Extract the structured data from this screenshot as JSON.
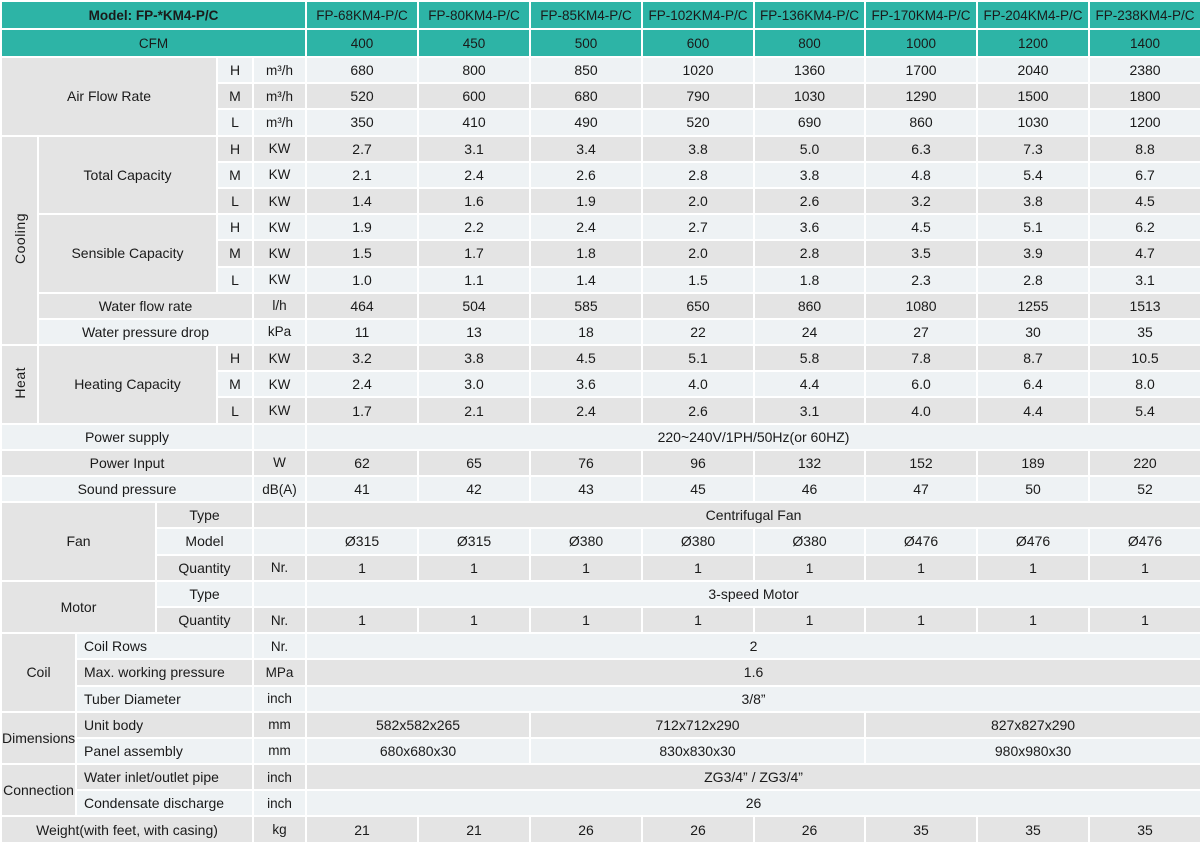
{
  "colors": {
    "header_teal": "#2db4a6",
    "row_gray": "#e4e4e4",
    "row_light": "#eef2f4",
    "grid_white": "#ffffff",
    "text": "#1a1a1a"
  },
  "table": {
    "header": [
      {
        "cells": [
          {
            "t": "Model: FP-*KM4-P/C",
            "cs": 6,
            "k": "hm"
          },
          {
            "t": "FP-68KM4-P/C",
            "k": "hc"
          },
          {
            "t": "FP-80KM4-P/C",
            "k": "hc"
          },
          {
            "t": "FP-85KM4-P/C",
            "k": "hc"
          },
          {
            "t": "FP-102KM4-P/C",
            "k": "hc"
          },
          {
            "t": "FP-136KM4-P/C",
            "k": "hc"
          },
          {
            "t": "FP-170KM4-P/C",
            "k": "hc"
          },
          {
            "t": "FP-204KM4-P/C",
            "k": "hc"
          },
          {
            "t": "FP-238KM4-P/C",
            "k": "hc"
          }
        ]
      },
      {
        "cells": [
          {
            "t": "CFM",
            "cs": 6,
            "k": "hc"
          },
          {
            "t": "400",
            "k": "hc"
          },
          {
            "t": "450",
            "k": "hc"
          },
          {
            "t": "500",
            "k": "hc"
          },
          {
            "t": "600",
            "k": "hc"
          },
          {
            "t": "800",
            "k": "hc"
          },
          {
            "t": "1000",
            "k": "hc"
          },
          {
            "t": "1200",
            "k": "hc"
          },
          {
            "t": "1400",
            "k": "hc"
          }
        ]
      }
    ],
    "body": [
      {
        "cells": [
          {
            "t": "Air Flow Rate",
            "cs": 4,
            "rs": 3,
            "k": "g"
          },
          {
            "t": "H",
            "k": "h"
          },
          {
            "t": "m³/h",
            "k": "u"
          },
          {
            "t": "680"
          },
          {
            "t": "800"
          },
          {
            "t": "850"
          },
          {
            "t": "1020"
          },
          {
            "t": "1360"
          },
          {
            "t": "1700"
          },
          {
            "t": "2040"
          },
          {
            "t": "2380"
          }
        ]
      },
      {
        "cells": [
          {
            "t": "M",
            "k": "h"
          },
          {
            "t": "m³/h",
            "k": "u"
          },
          {
            "t": "520"
          },
          {
            "t": "600"
          },
          {
            "t": "680"
          },
          {
            "t": "790"
          },
          {
            "t": "1030"
          },
          {
            "t": "1290"
          },
          {
            "t": "1500"
          },
          {
            "t": "1800"
          }
        ]
      },
      {
        "cells": [
          {
            "t": "L",
            "k": "h"
          },
          {
            "t": "m³/h",
            "k": "u"
          },
          {
            "t": "350"
          },
          {
            "t": "410"
          },
          {
            "t": "490"
          },
          {
            "t": "520"
          },
          {
            "t": "690"
          },
          {
            "t": "860"
          },
          {
            "t": "1030"
          },
          {
            "t": "1200"
          }
        ]
      },
      {
        "cells": [
          {
            "t": "Cooling",
            "rs": 8,
            "k": "v"
          },
          {
            "t": "Total Capacity",
            "cs": 3,
            "rs": 3,
            "k": "g"
          },
          {
            "t": "H",
            "k": "h"
          },
          {
            "t": "KW",
            "k": "u"
          },
          {
            "t": "2.7"
          },
          {
            "t": "3.1"
          },
          {
            "t": "3.4"
          },
          {
            "t": "3.8"
          },
          {
            "t": "5.0"
          },
          {
            "t": "6.3"
          },
          {
            "t": "7.3"
          },
          {
            "t": "8.8"
          }
        ]
      },
      {
        "cells": [
          {
            "t": "M",
            "k": "h"
          },
          {
            "t": "KW",
            "k": "u"
          },
          {
            "t": "2.1"
          },
          {
            "t": "2.4"
          },
          {
            "t": "2.6"
          },
          {
            "t": "2.8"
          },
          {
            "t": "3.8"
          },
          {
            "t": "4.8"
          },
          {
            "t": "5.4"
          },
          {
            "t": "6.7"
          }
        ]
      },
      {
        "cells": [
          {
            "t": "L",
            "k": "h"
          },
          {
            "t": "KW",
            "k": "u"
          },
          {
            "t": "1.4"
          },
          {
            "t": "1.6"
          },
          {
            "t": "1.9"
          },
          {
            "t": "2.0"
          },
          {
            "t": "2.6"
          },
          {
            "t": "3.2"
          },
          {
            "t": "3.8"
          },
          {
            "t": "4.5"
          }
        ]
      },
      {
        "cells": [
          {
            "t": "Sensible Capacity",
            "cs": 3,
            "rs": 3,
            "k": "g"
          },
          {
            "t": "H",
            "k": "h"
          },
          {
            "t": "KW",
            "k": "u"
          },
          {
            "t": "1.9"
          },
          {
            "t": "2.2"
          },
          {
            "t": "2.4"
          },
          {
            "t": "2.7"
          },
          {
            "t": "3.6"
          },
          {
            "t": "4.5"
          },
          {
            "t": "5.1"
          },
          {
            "t": "6.2"
          }
        ]
      },
      {
        "cells": [
          {
            "t": "M",
            "k": "h"
          },
          {
            "t": "KW",
            "k": "u"
          },
          {
            "t": "1.5"
          },
          {
            "t": "1.7"
          },
          {
            "t": "1.8"
          },
          {
            "t": "2.0"
          },
          {
            "t": "2.8"
          },
          {
            "t": "3.5"
          },
          {
            "t": "3.9"
          },
          {
            "t": "4.7"
          }
        ]
      },
      {
        "cells": [
          {
            "t": "L",
            "k": "h"
          },
          {
            "t": "KW",
            "k": "u"
          },
          {
            "t": "1.0"
          },
          {
            "t": "1.1"
          },
          {
            "t": "1.4"
          },
          {
            "t": "1.5"
          },
          {
            "t": "1.8"
          },
          {
            "t": "2.3"
          },
          {
            "t": "2.8"
          },
          {
            "t": "3.1"
          }
        ]
      },
      {
        "cells": [
          {
            "t": "Water flow rate",
            "cs": 4,
            "k": "l"
          },
          {
            "t": "l/h",
            "k": "u"
          },
          {
            "t": "464"
          },
          {
            "t": "504"
          },
          {
            "t": "585"
          },
          {
            "t": "650"
          },
          {
            "t": "860"
          },
          {
            "t": "1080"
          },
          {
            "t": "1255"
          },
          {
            "t": "1513"
          }
        ]
      },
      {
        "cells": [
          {
            "t": "Water pressure drop",
            "cs": 4,
            "k": "l"
          },
          {
            "t": "kPa",
            "k": "u"
          },
          {
            "t": "11"
          },
          {
            "t": "13"
          },
          {
            "t": "18"
          },
          {
            "t": "22"
          },
          {
            "t": "24"
          },
          {
            "t": "27"
          },
          {
            "t": "30"
          },
          {
            "t": "35"
          }
        ]
      },
      {
        "cells": [
          {
            "t": "Heat",
            "rs": 3,
            "k": "v"
          },
          {
            "t": "Heating Capacity",
            "cs": 3,
            "rs": 3,
            "k": "g"
          },
          {
            "t": "H",
            "k": "h"
          },
          {
            "t": "KW",
            "k": "u"
          },
          {
            "t": "3.2"
          },
          {
            "t": "3.8"
          },
          {
            "t": "4.5"
          },
          {
            "t": "5.1"
          },
          {
            "t": "5.8"
          },
          {
            "t": "7.8"
          },
          {
            "t": "8.7"
          },
          {
            "t": "10.5"
          }
        ]
      },
      {
        "cells": [
          {
            "t": "M",
            "k": "h"
          },
          {
            "t": "KW",
            "k": "u"
          },
          {
            "t": "2.4"
          },
          {
            "t": "3.0"
          },
          {
            "t": "3.6"
          },
          {
            "t": "4.0"
          },
          {
            "t": "4.4"
          },
          {
            "t": "6.0"
          },
          {
            "t": "6.4"
          },
          {
            "t": "8.0"
          }
        ]
      },
      {
        "cells": [
          {
            "t": "L",
            "k": "h"
          },
          {
            "t": "KW",
            "k": "u"
          },
          {
            "t": "1.7"
          },
          {
            "t": "2.1"
          },
          {
            "t": "2.4"
          },
          {
            "t": "2.6"
          },
          {
            "t": "3.1"
          },
          {
            "t": "4.0"
          },
          {
            "t": "4.4"
          },
          {
            "t": "5.4"
          }
        ]
      },
      {
        "cells": [
          {
            "t": "Power supply",
            "cs": 5,
            "k": "l"
          },
          {
            "t": "",
            "k": "u"
          },
          {
            "t": "220~240V/1PH/50Hz(or 60HZ)",
            "cs": 8,
            "k": "w"
          }
        ]
      },
      {
        "cells": [
          {
            "t": "Power Input",
            "cs": 5,
            "k": "l"
          },
          {
            "t": "W",
            "k": "u"
          },
          {
            "t": "62"
          },
          {
            "t": "65"
          },
          {
            "t": "76"
          },
          {
            "t": "96"
          },
          {
            "t": "132"
          },
          {
            "t": "152"
          },
          {
            "t": "189"
          },
          {
            "t": "220"
          }
        ]
      },
      {
        "cells": [
          {
            "t": "Sound pressure",
            "cs": 5,
            "k": "l"
          },
          {
            "t": "dB(A)",
            "k": "u"
          },
          {
            "t": "41"
          },
          {
            "t": "42"
          },
          {
            "t": "43"
          },
          {
            "t": "45"
          },
          {
            "t": "46"
          },
          {
            "t": "47"
          },
          {
            "t": "50"
          },
          {
            "t": "52"
          }
        ]
      },
      {
        "cells": [
          {
            "t": "Fan",
            "cs": 3,
            "rs": 3,
            "k": "g"
          },
          {
            "t": "Type",
            "cs": 2,
            "k": "l"
          },
          {
            "t": "",
            "k": "u"
          },
          {
            "t": "Centrifugal Fan",
            "cs": 8,
            "k": "w"
          }
        ]
      },
      {
        "cells": [
          {
            "t": "Model",
            "cs": 2,
            "k": "l"
          },
          {
            "t": "",
            "k": "u"
          },
          {
            "t": "Ø315"
          },
          {
            "t": "Ø315"
          },
          {
            "t": "Ø380"
          },
          {
            "t": "Ø380"
          },
          {
            "t": "Ø380"
          },
          {
            "t": "Ø476"
          },
          {
            "t": "Ø476"
          },
          {
            "t": "Ø476"
          }
        ]
      },
      {
        "cells": [
          {
            "t": "Quantity",
            "cs": 2,
            "k": "l"
          },
          {
            "t": "Nr.",
            "k": "u"
          },
          {
            "t": "1"
          },
          {
            "t": "1"
          },
          {
            "t": "1"
          },
          {
            "t": "1"
          },
          {
            "t": "1"
          },
          {
            "t": "1"
          },
          {
            "t": "1"
          },
          {
            "t": "1"
          }
        ]
      },
      {
        "cells": [
          {
            "t": "Motor",
            "cs": 3,
            "rs": 2,
            "k": "g"
          },
          {
            "t": "Type",
            "cs": 2,
            "k": "l"
          },
          {
            "t": "",
            "k": "u"
          },
          {
            "t": "3-speed Motor",
            "cs": 8,
            "k": "w"
          }
        ]
      },
      {
        "cells": [
          {
            "t": "Quantity",
            "cs": 2,
            "k": "l"
          },
          {
            "t": "Nr.",
            "k": "u"
          },
          {
            "t": "1"
          },
          {
            "t": "1"
          },
          {
            "t": "1"
          },
          {
            "t": "1"
          },
          {
            "t": "1"
          },
          {
            "t": "1"
          },
          {
            "t": "1"
          },
          {
            "t": "1"
          }
        ]
      },
      {
        "cells": [
          {
            "t": "Coil",
            "cs": 2,
            "rs": 3,
            "k": "g"
          },
          {
            "t": "Coil Rows",
            "cs": 3,
            "k": "ll"
          },
          {
            "t": "Nr.",
            "k": "u"
          },
          {
            "t": "2",
            "cs": 8,
            "k": "w"
          }
        ]
      },
      {
        "cells": [
          {
            "t": "Max. working pressure",
            "cs": 3,
            "k": "ll"
          },
          {
            "t": "MPa",
            "k": "u"
          },
          {
            "t": "1.6",
            "cs": 8,
            "k": "w"
          }
        ]
      },
      {
        "cells": [
          {
            "t": "Tuber Diameter",
            "cs": 3,
            "k": "ll"
          },
          {
            "t": "inch",
            "k": "u"
          },
          {
            "t": "3/8”",
            "cs": 8,
            "k": "w"
          }
        ]
      },
      {
        "cells": [
          {
            "t": "Dimensions",
            "cs": 2,
            "rs": 2,
            "k": "g"
          },
          {
            "t": "Unit body",
            "cs": 3,
            "k": "ll"
          },
          {
            "t": "mm",
            "k": "u"
          },
          {
            "t": "582x582x265",
            "cs": 2,
            "k": "w"
          },
          {
            "t": "712x712x290",
            "cs": 3,
            "k": "w"
          },
          {
            "t": "827x827x290",
            "cs": 3,
            "k": "w"
          }
        ]
      },
      {
        "cells": [
          {
            "t": "Panel assembly",
            "cs": 3,
            "k": "ll"
          },
          {
            "t": "mm",
            "k": "u"
          },
          {
            "t": "680x680x30",
            "cs": 2,
            "k": "w"
          },
          {
            "t": "830x830x30",
            "cs": 3,
            "k": "w"
          },
          {
            "t": "980x980x30",
            "cs": 3,
            "k": "w"
          }
        ]
      },
      {
        "cells": [
          {
            "t": "Connection",
            "cs": 2,
            "rs": 2,
            "k": "g"
          },
          {
            "t": "Water inlet/outlet pipe",
            "cs": 3,
            "k": "ll"
          },
          {
            "t": "inch",
            "k": "u"
          },
          {
            "t": "ZG3/4” / ZG3/4”",
            "cs": 8,
            "k": "w"
          }
        ]
      },
      {
        "cells": [
          {
            "t": "Condensate discharge",
            "cs": 3,
            "k": "ll"
          },
          {
            "t": "inch",
            "k": "u"
          },
          {
            "t": "26",
            "cs": 8,
            "k": "w"
          }
        ]
      },
      {
        "cells": [
          {
            "t": "Weight(with feet, with casing)",
            "cs": 5,
            "k": "l"
          },
          {
            "t": "kg",
            "k": "u"
          },
          {
            "t": "21"
          },
          {
            "t": "21"
          },
          {
            "t": "26"
          },
          {
            "t": "26"
          },
          {
            "t": "26"
          },
          {
            "t": "35"
          },
          {
            "t": "35"
          },
          {
            "t": "35"
          }
        ]
      }
    ]
  }
}
